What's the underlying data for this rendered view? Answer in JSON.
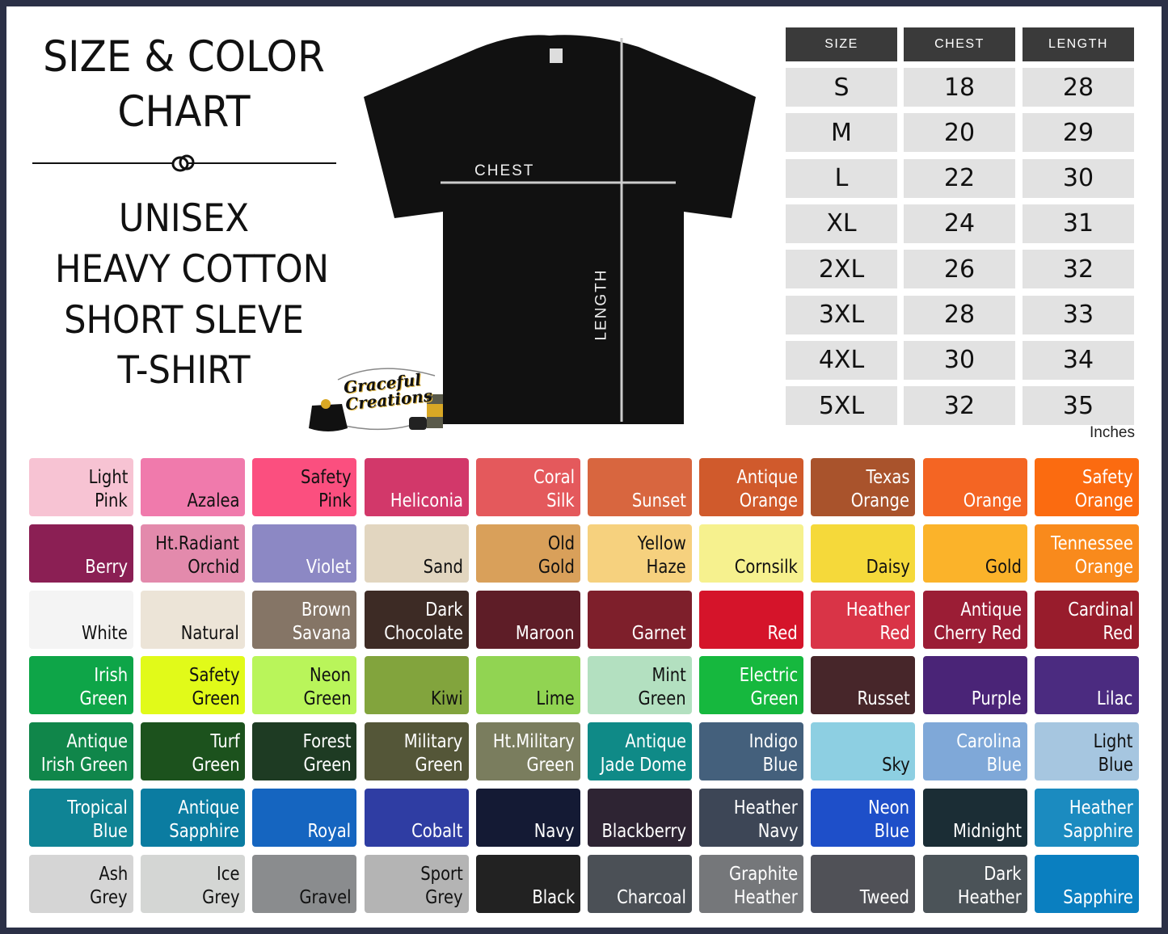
{
  "heading": {
    "line1": "SIZE & COLOR",
    "line2": "CHART",
    "product": [
      "UNISEX",
      "HEAVY COTTON",
      "SHORT SLEVE",
      "T-SHIRT"
    ]
  },
  "shirt": {
    "chest_label": "CHEST",
    "length_label": "LENGTH"
  },
  "logo": {
    "line1": "Graceful",
    "line2": "Creations",
    "tag": "sparkle",
    "cup": "coffee"
  },
  "size_table": {
    "headers": [
      "SIZE",
      "CHEST",
      "LENGTH"
    ],
    "rows": [
      [
        "S",
        "18",
        "28"
      ],
      [
        "M",
        "20",
        "29"
      ],
      [
        "L",
        "22",
        "30"
      ],
      [
        "XL",
        "24",
        "31"
      ],
      [
        "2XL",
        "26",
        "32"
      ],
      [
        "3XL",
        "28",
        "33"
      ],
      [
        "4XL",
        "30",
        "34"
      ],
      [
        "5XL",
        "32",
        "35"
      ]
    ],
    "unit": "Inches"
  },
  "colors": [
    [
      {
        "n": [
          "Light",
          "Pink"
        ],
        "c": "#f7c3d3",
        "t": "#111"
      },
      {
        "n": [
          "Azalea"
        ],
        "c": "#f07aac",
        "t": "#111"
      },
      {
        "n": [
          "Safety",
          "Pink"
        ],
        "c": "#fb4f7f",
        "t": "#111"
      },
      {
        "n": [
          "Heliconia"
        ],
        "c": "#d2386a",
        "t": "#fff"
      },
      {
        "n": [
          "Coral",
          "Silk"
        ],
        "c": "#e4595c",
        "t": "#fff"
      },
      {
        "n": [
          "Sunset"
        ],
        "c": "#d8663f",
        "t": "#fff"
      },
      {
        "n": [
          "Antique",
          "Orange"
        ],
        "c": "#d05a2c",
        "t": "#fff"
      },
      {
        "n": [
          "Texas",
          "Orange"
        ],
        "c": "#a9532c",
        "t": "#fff"
      },
      {
        "n": [
          "Orange"
        ],
        "c": "#f46523",
        "t": "#fff"
      },
      {
        "n": [
          "Safety",
          "Orange"
        ],
        "c": "#fb6b10",
        "t": "#fff"
      }
    ],
    [
      {
        "n": [
          "Berry"
        ],
        "c": "#8b1f54",
        "t": "#fff"
      },
      {
        "n": [
          "Ht.Radiant",
          "Orchid"
        ],
        "c": "#e38aac",
        "t": "#111"
      },
      {
        "n": [
          "Violet"
        ],
        "c": "#8c88c4",
        "t": "#fff"
      },
      {
        "n": [
          "Sand"
        ],
        "c": "#e2d6c0",
        "t": "#111"
      },
      {
        "n": [
          "Old",
          "Gold"
        ],
        "c": "#d9a05a",
        "t": "#111"
      },
      {
        "n": [
          "Yellow",
          "Haze"
        ],
        "c": "#f6d17e",
        "t": "#111"
      },
      {
        "n": [
          "Cornsilk"
        ],
        "c": "#f6f18e",
        "t": "#111"
      },
      {
        "n": [
          "Daisy"
        ],
        "c": "#f5d93a",
        "t": "#111"
      },
      {
        "n": [
          "Gold"
        ],
        "c": "#fbb32a",
        "t": "#111"
      },
      {
        "n": [
          "Tennessee",
          "Orange"
        ],
        "c": "#f98a1c",
        "t": "#fff"
      }
    ],
    [
      {
        "n": [
          "White"
        ],
        "c": "#f4f4f4",
        "t": "#111"
      },
      {
        "n": [
          "Natural"
        ],
        "c": "#ece4d7",
        "t": "#111"
      },
      {
        "n": [
          "Brown",
          "Savana"
        ],
        "c": "#857566",
        "t": "#fff"
      },
      {
        "n": [
          "Dark",
          "Chocolate"
        ],
        "c": "#3d2b25",
        "t": "#fff"
      },
      {
        "n": [
          "Maroon"
        ],
        "c": "#5e1d27",
        "t": "#fff"
      },
      {
        "n": [
          "Garnet"
        ],
        "c": "#7e1f2b",
        "t": "#fff"
      },
      {
        "n": [
          "Red"
        ],
        "c": "#d5142a",
        "t": "#fff"
      },
      {
        "n": [
          "Heather",
          "Red"
        ],
        "c": "#d93447",
        "t": "#fff"
      },
      {
        "n": [
          "Antique",
          "Cherry Red"
        ],
        "c": "#9b1d35",
        "t": "#fff"
      },
      {
        "n": [
          "Cardinal",
          "Red"
        ],
        "c": "#981c2c",
        "t": "#fff"
      }
    ],
    [
      {
        "n": [
          "Irish",
          "Green"
        ],
        "c": "#0ea548",
        "t": "#fff"
      },
      {
        "n": [
          "Safety",
          "Green"
        ],
        "c": "#e1fa19",
        "t": "#111"
      },
      {
        "n": [
          "Neon",
          "Green"
        ],
        "c": "#b9f55a",
        "t": "#111"
      },
      {
        "n": [
          "Kiwi"
        ],
        "c": "#82a43d",
        "t": "#111"
      },
      {
        "n": [
          "Lime"
        ],
        "c": "#91d452",
        "t": "#111"
      },
      {
        "n": [
          "Mint",
          "Green"
        ],
        "c": "#b3e0c0",
        "t": "#111"
      },
      {
        "n": [
          "Electric",
          "Green"
        ],
        "c": "#16b83e",
        "t": "#fff"
      },
      {
        "n": [
          "Russet"
        ],
        "c": "#47262a",
        "t": "#fff"
      },
      {
        "n": [
          "Purple"
        ],
        "c": "#4a2477",
        "t": "#fff"
      },
      {
        "n": [
          "Lilac"
        ],
        "c": "#4b2b80",
        "t": "#fff"
      }
    ],
    [
      {
        "n": [
          "Antique",
          "Irish Green"
        ],
        "c": "#10864a",
        "t": "#fff"
      },
      {
        "n": [
          "Turf",
          "Green"
        ],
        "c": "#1c521d",
        "t": "#fff"
      },
      {
        "n": [
          "Forest",
          "Green"
        ],
        "c": "#1e3b23",
        "t": "#fff"
      },
      {
        "n": [
          "Military",
          "Green"
        ],
        "c": "#545638",
        "t": "#fff"
      },
      {
        "n": [
          "Ht.Military",
          "Green"
        ],
        "c": "#7a7d5e",
        "t": "#fff"
      },
      {
        "n": [
          "Antique",
          "Jade Dome"
        ],
        "c": "#0f8a87",
        "t": "#fff"
      },
      {
        "n": [
          "Indigo",
          "Blue"
        ],
        "c": "#44607c",
        "t": "#fff"
      },
      {
        "n": [
          "Sky"
        ],
        "c": "#8dcfe2",
        "t": "#111"
      },
      {
        "n": [
          "Carolina",
          "Blue"
        ],
        "c": "#7fa8d8",
        "t": "#fff"
      },
      {
        "n": [
          "Light",
          "Blue"
        ],
        "c": "#a6c6e0",
        "t": "#111"
      }
    ],
    [
      {
        "n": [
          "Tropical",
          "Blue"
        ],
        "c": "#0f8495",
        "t": "#fff"
      },
      {
        "n": [
          "Antique",
          "Sapphire"
        ],
        "c": "#0b7ca1",
        "t": "#fff"
      },
      {
        "n": [
          "Royal"
        ],
        "c": "#1565c0",
        "t": "#fff"
      },
      {
        "n": [
          "Cobalt"
        ],
        "c": "#2f3da3",
        "t": "#fff"
      },
      {
        "n": [
          "Navy"
        ],
        "c": "#141a34",
        "t": "#fff"
      },
      {
        "n": [
          "Blackberry"
        ],
        "c": "#2e2433",
        "t": "#fff"
      },
      {
        "n": [
          "Heather",
          "Navy"
        ],
        "c": "#3d4656",
        "t": "#fff"
      },
      {
        "n": [
          "Neon",
          "Blue"
        ],
        "c": "#1e4fc9",
        "t": "#fff"
      },
      {
        "n": [
          "Midnight"
        ],
        "c": "#1b2d35",
        "t": "#fff"
      },
      {
        "n": [
          "Heather",
          "Sapphire"
        ],
        "c": "#1b8bc0",
        "t": "#fff"
      }
    ],
    [
      {
        "n": [
          "Ash",
          "Grey"
        ],
        "c": "#d5d5d5",
        "t": "#111"
      },
      {
        "n": [
          "Ice",
          "Grey"
        ],
        "c": "#d4d6d4",
        "t": "#111"
      },
      {
        "n": [
          "Gravel"
        ],
        "c": "#8a8c8e",
        "t": "#111"
      },
      {
        "n": [
          "Sport",
          "Grey"
        ],
        "c": "#b4b4b4",
        "t": "#111"
      },
      {
        "n": [
          "Black"
        ],
        "c": "#222222",
        "t": "#fff"
      },
      {
        "n": [
          "Charcoal"
        ],
        "c": "#4b5056",
        "t": "#fff"
      },
      {
        "n": [
          "Graphite",
          "Heather"
        ],
        "c": "#75777a",
        "t": "#fff"
      },
      {
        "n": [
          "Tweed"
        ],
        "c": "#505157",
        "t": "#fff"
      },
      {
        "n": [
          "Dark",
          "Heather"
        ],
        "c": "#4b5358",
        "t": "#fff"
      },
      {
        "n": [
          "Sapphire"
        ],
        "c": "#0a7fc0",
        "t": "#fff"
      }
    ]
  ]
}
